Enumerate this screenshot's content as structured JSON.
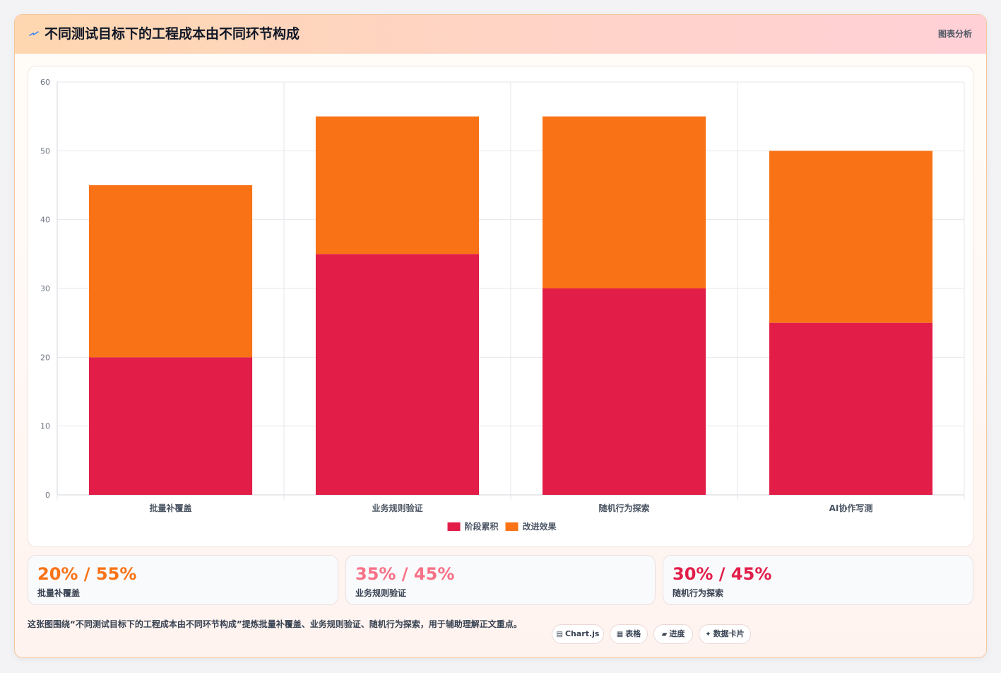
{
  "header": {
    "icon": "lightning-icon",
    "title": "不同测试目标下的工程成本由不同环节构成",
    "tag": "图表分析"
  },
  "colors": {
    "series1": "#e11d48",
    "series2": "#f97316",
    "stat1": "#f97316",
    "stat2": "#f87186",
    "stat3": "#e11d48"
  },
  "chart_data": {
    "type": "bar",
    "stacked": true,
    "categories": [
      "批量补覆盖",
      "业务规则验证",
      "随机行为探索",
      "AI协作写测"
    ],
    "series": [
      {
        "name": "阶段累积",
        "values": [
          20,
          35,
          30,
          25
        ]
      },
      {
        "name": "改进效果",
        "values": [
          25,
          20,
          25,
          25
        ]
      }
    ],
    "ylim": [
      0,
      60
    ],
    "yticks": [
      0,
      10,
      20,
      30,
      40,
      50,
      60
    ],
    "legend": "bottom",
    "grid": true
  },
  "stats": [
    {
      "value": "20% / 55%",
      "label": "批量补覆盖"
    },
    {
      "value": "35% / 45%",
      "label": "业务规则验证"
    },
    {
      "value": "30% / 45%",
      "label": "随机行为探索"
    }
  ],
  "footer": {
    "text": "这张图围绕“不同测试目标下的工程成本由不同环节构成”提炼批量补覆盖、业务规则验证、随机行为探索，用于辅助理解正文重点。",
    "tags": [
      {
        "icon": "chart-icon",
        "glyph": "▤",
        "label": "Chart.js"
      },
      {
        "icon": "table-icon",
        "glyph": "▦",
        "label": "表格"
      },
      {
        "icon": "progress-icon",
        "glyph": "▰",
        "label": "进度"
      },
      {
        "icon": "sparkle-icon",
        "glyph": "✦",
        "label": "数据卡片"
      }
    ]
  }
}
